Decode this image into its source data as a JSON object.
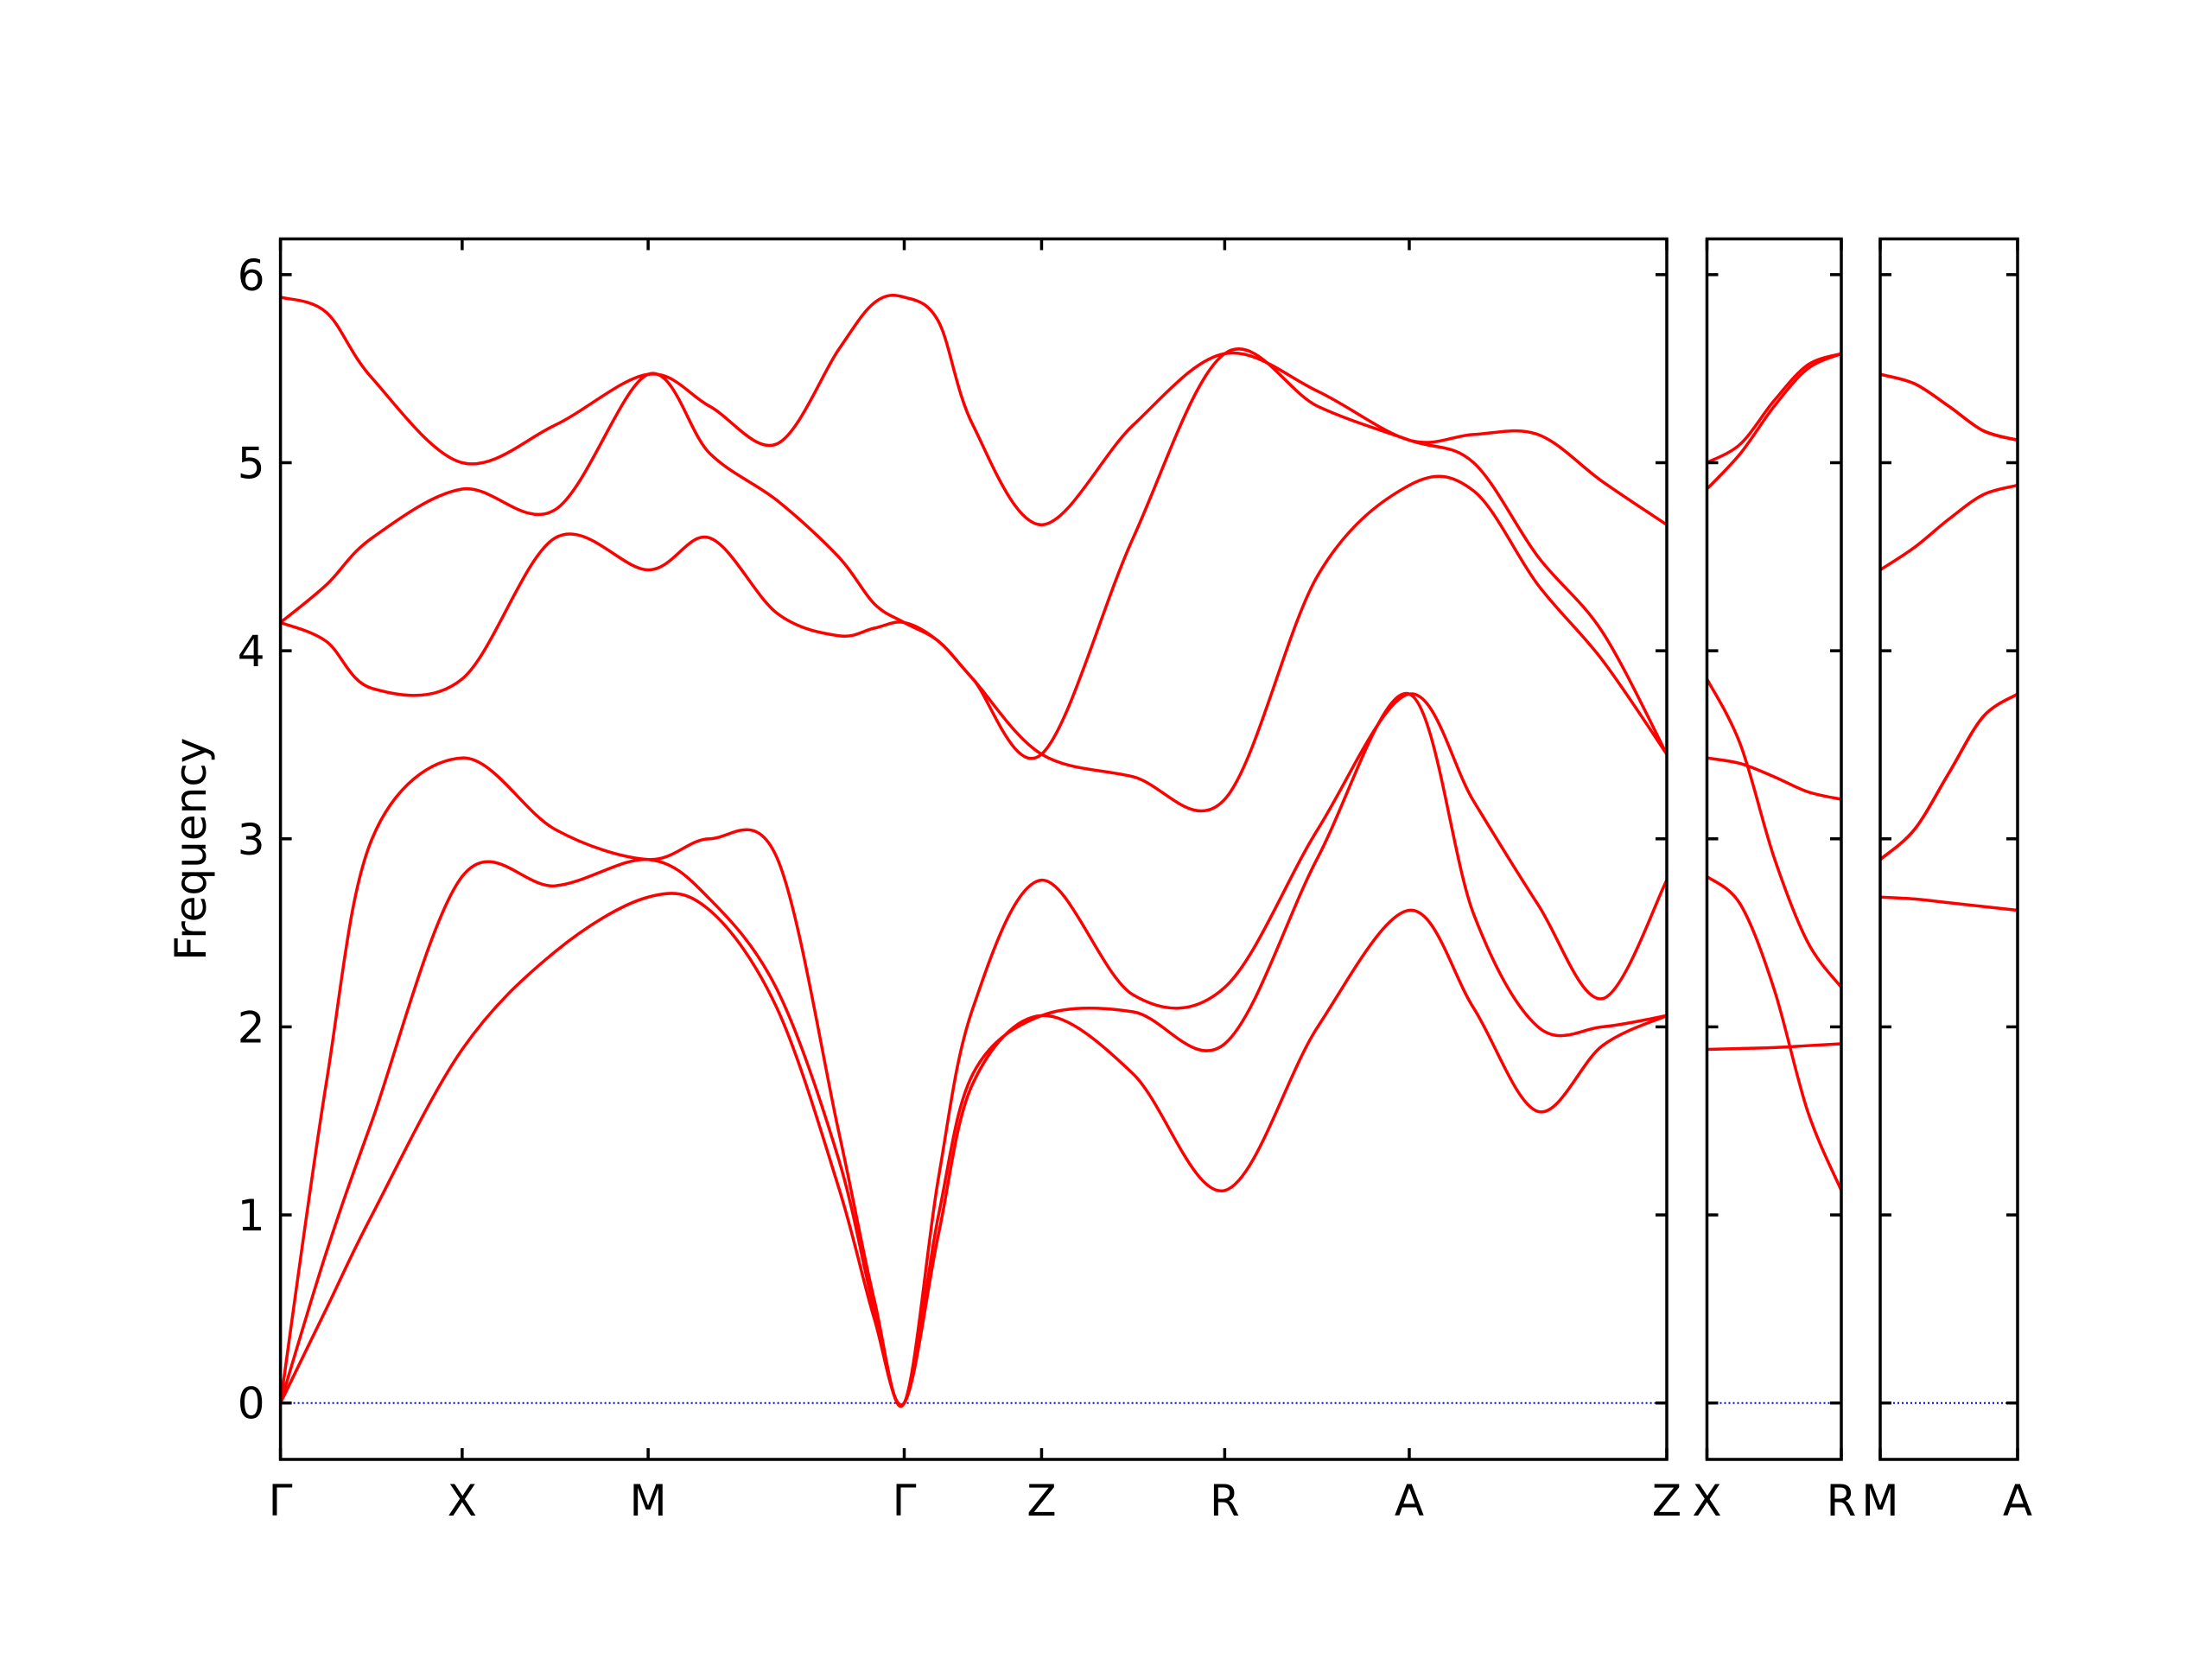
{
  "chart_data": [
    {
      "type": "line",
      "ylabel": "Frequency",
      "color": "#ff0000",
      "show_ytick_labels": true,
      "hline": {
        "value": 0,
        "color": "#0000ff",
        "style": "dotted"
      },
      "xlim": [
        0,
        9.69
      ],
      "ylim": [
        -0.3,
        6.19
      ],
      "yticks": [
        0,
        1,
        2,
        3,
        4,
        5,
        6
      ],
      "xticks": [
        {
          "value": 0,
          "label": "Γ"
        },
        {
          "value": 1.27,
          "label": "X"
        },
        {
          "value": 2.57,
          "label": "M"
        },
        {
          "value": 4.36,
          "label": "Γ"
        },
        {
          "value": 5.32,
          "label": "Z"
        },
        {
          "value": 6.6,
          "label": "R"
        },
        {
          "value": 7.89,
          "label": "A"
        },
        {
          "value": 9.69,
          "label": "Z"
        }
      ],
      "x": [
        0,
        0.32,
        0.64,
        1.27,
        1.92,
        2.57,
        3.0,
        3.47,
        3.9,
        4.15,
        4.36,
        4.6,
        4.84,
        5.32,
        5.96,
        6.6,
        7.25,
        7.89,
        8.34,
        8.79,
        9.24,
        9.69
      ],
      "series": [
        {
          "values": [
            0,
            0.5,
            1.0,
            1.88,
            2.4,
            2.69,
            2.62,
            2.1,
            1.15,
            0.45,
            0,
            0.9,
            1.7,
            2.06,
            1.75,
            1.13,
            2.0,
            2.62,
            2.1,
            1.55,
            1.9,
            2.06
          ]
        },
        {
          "values": [
            0,
            0.8,
            1.5,
            2.8,
            2.75,
            2.89,
            2.68,
            2.2,
            1.3,
            0.5,
            0,
            1.0,
            1.75,
            2.06,
            2.08,
            1.91,
            2.9,
            3.77,
            2.6,
            2.0,
            2.0,
            2.06
          ]
        },
        {
          "values": [
            0,
            1.7,
            3.0,
            3.43,
            3.05,
            2.89,
            3.0,
            2.9,
            1.45,
            0.55,
            0,
            1.2,
            2.1,
            2.78,
            2.17,
            2.21,
            3.05,
            3.77,
            3.2,
            2.65,
            2.15,
            2.78
          ]
        },
        {
          "values": [
            4.15,
            4.05,
            3.8,
            3.85,
            4.6,
            4.43,
            4.6,
            4.2,
            4.08,
            4.12,
            4.15,
            4.05,
            3.85,
            3.45,
            3.33,
            3.21,
            4.4,
            4.88,
            4.85,
            4.35,
            3.95,
            3.45
          ]
        },
        {
          "values": [
            4.15,
            4.35,
            4.6,
            4.86,
            4.75,
            5.47,
            5.05,
            4.8,
            4.5,
            4.25,
            4.15,
            4.05,
            3.85,
            3.45,
            4.6,
            5.58,
            5.3,
            5.12,
            5.0,
            4.5,
            4.1,
            3.45
          ]
        },
        {
          "values": [
            5.88,
            5.8,
            5.45,
            5.0,
            5.2,
            5.47,
            5.3,
            5.1,
            5.6,
            5.85,
            5.88,
            5.75,
            5.2,
            4.67,
            5.2,
            5.58,
            5.38,
            5.12,
            5.15,
            5.15,
            4.9,
            4.67
          ]
        }
      ]
    },
    {
      "type": "line",
      "color": "#ff0000",
      "show_ytick_labels": false,
      "hline": {
        "value": 0,
        "color": "#0000ff",
        "style": "dotted"
      },
      "xlim": [
        0,
        0.94
      ],
      "ylim": [
        -0.3,
        6.19
      ],
      "yticks": [
        0,
        1,
        2,
        3,
        4,
        5,
        6
      ],
      "xticks": [
        {
          "value": 0,
          "label": "X"
        },
        {
          "value": 0.94,
          "label": "R"
        }
      ],
      "x": [
        0,
        0.235,
        0.47,
        0.705,
        0.94
      ],
      "series": [
        {
          "values": [
            1.88,
            1.885,
            1.89,
            1.9,
            1.91
          ]
        },
        {
          "values": [
            2.8,
            2.65,
            2.2,
            1.55,
            1.13
          ]
        },
        {
          "values": [
            3.85,
            3.5,
            2.9,
            2.45,
            2.21
          ]
        },
        {
          "values": [
            3.43,
            3.4,
            3.33,
            3.25,
            3.21
          ]
        },
        {
          "values": [
            4.86,
            5.05,
            5.3,
            5.5,
            5.58
          ]
        },
        {
          "values": [
            5.0,
            5.1,
            5.33,
            5.52,
            5.58
          ]
        }
      ]
    },
    {
      "type": "line",
      "color": "#ff0000",
      "show_ytick_labels": false,
      "hline": {
        "value": 0,
        "color": "#0000ff",
        "style": "dotted"
      },
      "xlim": [
        0,
        0.96
      ],
      "ylim": [
        -0.3,
        6.19
      ],
      "yticks": [
        0,
        1,
        2,
        3,
        4,
        5,
        6
      ],
      "xticks": [
        {
          "value": 0,
          "label": "M"
        },
        {
          "value": 0.96,
          "label": "A"
        }
      ],
      "x": [
        0,
        0.24,
        0.48,
        0.72,
        0.96
      ],
      "series": [
        {
          "values": [
            2.69,
            2.68,
            2.66,
            2.64,
            2.62
          ]
        },
        {
          "values": [
            2.89,
            3.05,
            3.35,
            3.65,
            3.77
          ]
        },
        {
          "values": [
            2.89,
            3.05,
            3.35,
            3.65,
            3.77
          ]
        },
        {
          "values": [
            4.43,
            4.55,
            4.7,
            4.83,
            4.88
          ]
        },
        {
          "values": [
            5.47,
            5.42,
            5.3,
            5.17,
            5.12
          ]
        },
        {
          "values": [
            5.47,
            5.42,
            5.3,
            5.17,
            5.12
          ]
        }
      ]
    }
  ]
}
